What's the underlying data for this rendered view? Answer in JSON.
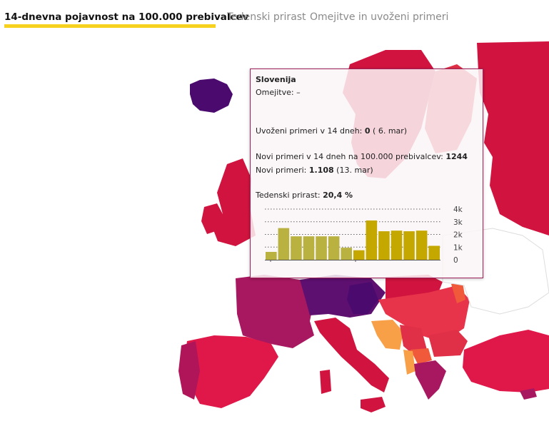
{
  "tabs": [
    {
      "label": "14-dnevna pojavnost na 100.000 prebivalcev",
      "active": true
    },
    {
      "label": "Tedenski prirast",
      "active": false
    },
    {
      "label": "Omejitve in uvoženi primeri",
      "active": false
    }
  ],
  "tooltip": {
    "country": "Slovenija",
    "restrictions_label": "Omejitve:",
    "restrictions_value": "–",
    "imported_label": "Uvoženi primeri v 14 dneh:",
    "imported_value": "0",
    "imported_date": "( 6. mar)",
    "new14_label": "Novi primeri v 14 dneh na 100.000 prebivalcev:",
    "new14_value": "1244",
    "new_label": "Novi primeri:",
    "new_value": "1.108",
    "new_date": "(13. mar)",
    "growth_label": "Tedenski prirast:",
    "growth_value": "20,4 %"
  },
  "chart_data": {
    "type": "bar",
    "y_ticks": [
      "4k",
      "3k",
      "2k",
      "1k",
      "0"
    ],
    "ylim": [
      0,
      4000
    ],
    "values": [
      620,
      2500,
      1850,
      1850,
      1850,
      1850,
      950,
      750,
      3100,
      2250,
      2300,
      2250,
      2300,
      1100
    ],
    "highlight_from_index": 7,
    "colors": {
      "older": "#b9b240",
      "recent": "#c4a800"
    }
  },
  "map_colors": {
    "high": "#d0143f",
    "higher": "#e03048",
    "very_high": "#a81860",
    "extreme": "#4a0a6e",
    "dark": "#5e1070",
    "medium": "#f05a3a",
    "low": "#f7a048",
    "none": "#ffffff"
  }
}
